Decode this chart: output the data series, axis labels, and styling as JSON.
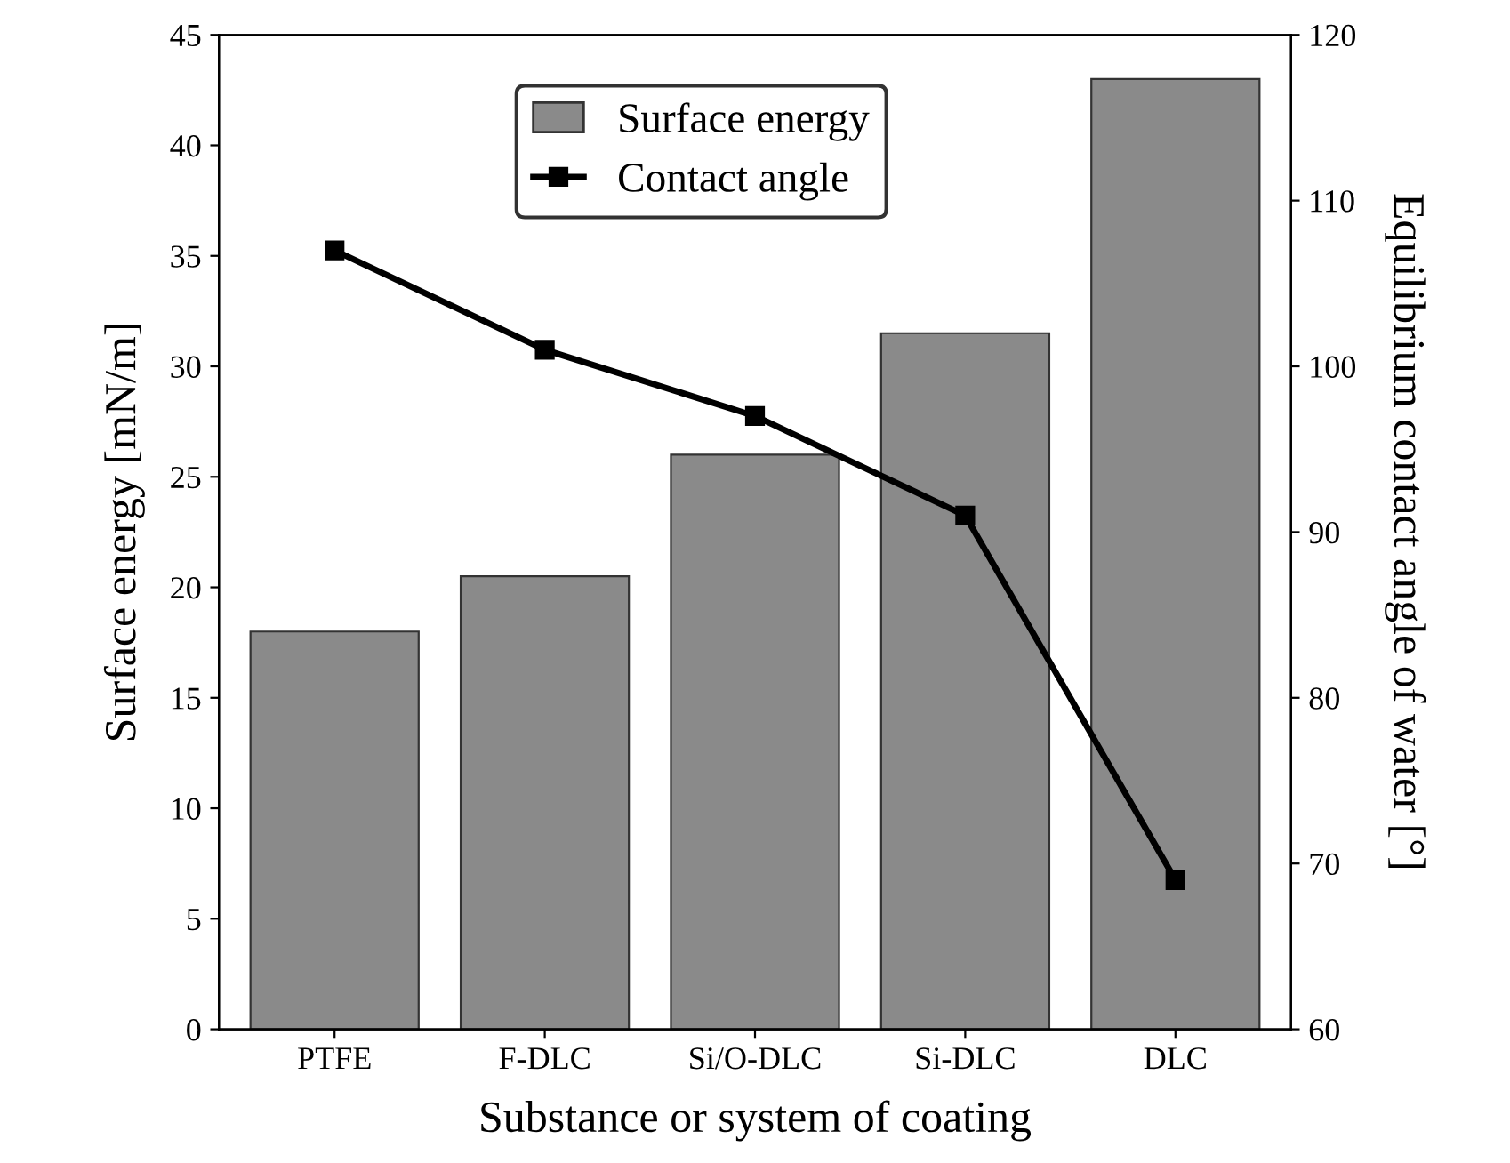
{
  "chart_data": {
    "type": "bar",
    "xlabel": "Substance or system of coating",
    "ylabel": "Surface energy [mN/m]",
    "y2label": "Equilibrium contact angle of water [°]",
    "categories": [
      "PTFE",
      "F-DLC",
      "Si/O-DLC",
      "Si-DLC",
      "DLC"
    ],
    "series": [
      {
        "name": "Surface energy",
        "color": "#8a8a8a",
        "values": [
          18,
          20.5,
          26,
          31.5,
          43
        ]
      },
      {
        "name": "Contact angle",
        "type": "line",
        "axis": "y2",
        "color": "#000000",
        "marker": "square",
        "line_style": "solid",
        "values": [
          107,
          101,
          97,
          91,
          69
        ]
      }
    ],
    "ylim": [
      0,
      45
    ],
    "yticks": [
      0,
      5,
      10,
      15,
      20,
      25,
      30,
      35,
      40,
      45
    ],
    "y2lim": [
      60,
      120
    ],
    "y2ticks": [
      60,
      70,
      80,
      90,
      100,
      110,
      120
    ],
    "legend": "top",
    "grid": false
  }
}
